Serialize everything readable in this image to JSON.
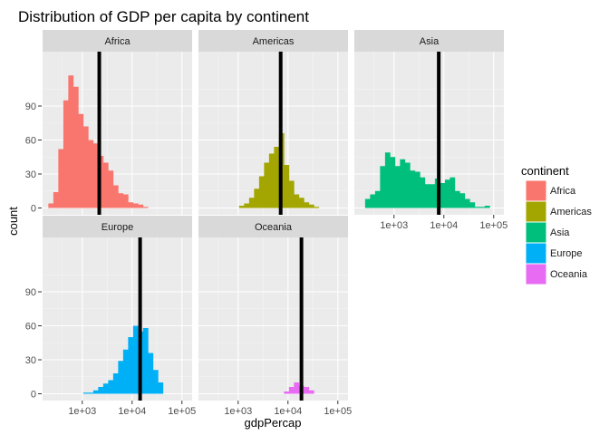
{
  "chart_data": {
    "type": "bar",
    "subtype": "faceted-histogram",
    "title": "Distribution of GDP per capita by continent",
    "xlabel": "gdpPercap",
    "ylabel": "count",
    "x_scale": "log10",
    "x_range": [
      160,
      160000
    ],
    "y_range": [
      -6,
      138
    ],
    "x_ticks": [
      {
        "value": 1000,
        "label": "1e+03"
      },
      {
        "value": 10000,
        "label": "1e+04"
      },
      {
        "value": 100000,
        "label": "1e+05"
      }
    ],
    "y_ticks": [
      {
        "value": 0,
        "label": "0"
      },
      {
        "value": 30,
        "label": "30"
      },
      {
        "value": 60,
        "label": "60"
      },
      {
        "value": 90,
        "label": "90"
      }
    ],
    "grid": true,
    "legend": {
      "title": "continent",
      "position": "right",
      "entries": [
        {
          "name": "Africa",
          "color": "#F8766D"
        },
        {
          "name": "Americas",
          "color": "#A3A500"
        },
        {
          "name": "Asia",
          "color": "#00BF7D"
        },
        {
          "name": "Europe",
          "color": "#00B0F6"
        },
        {
          "name": "Oceania",
          "color": "#E76BF3"
        }
      ]
    },
    "facets": [
      {
        "name": "Africa",
        "color": "#F8766D",
        "mean": 2194,
        "bins": [
          {
            "x0": 209,
            "x1": 263,
            "count": 4
          },
          {
            "x0": 263,
            "x1": 331,
            "count": 14
          },
          {
            "x0": 331,
            "x1": 417,
            "count": 52
          },
          {
            "x0": 417,
            "x1": 525,
            "count": 95
          },
          {
            "x0": 525,
            "x1": 661,
            "count": 117
          },
          {
            "x0": 661,
            "x1": 832,
            "count": 107
          },
          {
            "x0": 832,
            "x1": 1047,
            "count": 83
          },
          {
            "x0": 1047,
            "x1": 1318,
            "count": 72
          },
          {
            "x0": 1318,
            "x1": 1660,
            "count": 60
          },
          {
            "x0": 1660,
            "x1": 2089,
            "count": 57
          },
          {
            "x0": 2089,
            "x1": 2630,
            "count": 46
          },
          {
            "x0": 2630,
            "x1": 3311,
            "count": 40
          },
          {
            "x0": 3311,
            "x1": 4169,
            "count": 33
          },
          {
            "x0": 4169,
            "x1": 5248,
            "count": 20
          },
          {
            "x0": 5248,
            "x1": 6607,
            "count": 13
          },
          {
            "x0": 6607,
            "x1": 8318,
            "count": 12
          },
          {
            "x0": 8318,
            "x1": 10471,
            "count": 5
          },
          {
            "x0": 10471,
            "x1": 13183,
            "count": 4
          },
          {
            "x0": 13183,
            "x1": 16596,
            "count": 3
          },
          {
            "x0": 16596,
            "x1": 20893,
            "count": 1
          }
        ]
      },
      {
        "name": "Americas",
        "color": "#A3A500",
        "mean": 7136,
        "bins": [
          {
            "x0": 1047,
            "x1": 1318,
            "count": 2
          },
          {
            "x0": 1318,
            "x1": 1660,
            "count": 4
          },
          {
            "x0": 1660,
            "x1": 2089,
            "count": 9
          },
          {
            "x0": 2089,
            "x1": 2630,
            "count": 17
          },
          {
            "x0": 2630,
            "x1": 3311,
            "count": 28
          },
          {
            "x0": 3311,
            "x1": 4169,
            "count": 40
          },
          {
            "x0": 4169,
            "x1": 5248,
            "count": 48
          },
          {
            "x0": 5248,
            "x1": 6607,
            "count": 54
          },
          {
            "x0": 6607,
            "x1": 8318,
            "count": 66
          },
          {
            "x0": 8318,
            "x1": 10471,
            "count": 38
          },
          {
            "x0": 10471,
            "x1": 13183,
            "count": 24
          },
          {
            "x0": 13183,
            "x1": 16596,
            "count": 12
          },
          {
            "x0": 16596,
            "x1": 20893,
            "count": 9
          },
          {
            "x0": 20893,
            "x1": 26303,
            "count": 5
          },
          {
            "x0": 26303,
            "x1": 33113,
            "count": 3
          },
          {
            "x0": 33113,
            "x1": 41687,
            "count": 1
          }
        ]
      },
      {
        "name": "Asia",
        "color": "#00BF7D",
        "mean": 7902,
        "bins": [
          {
            "x0": 263,
            "x1": 331,
            "count": 8
          },
          {
            "x0": 331,
            "x1": 417,
            "count": 12
          },
          {
            "x0": 417,
            "x1": 525,
            "count": 15
          },
          {
            "x0": 525,
            "x1": 661,
            "count": 37
          },
          {
            "x0": 661,
            "x1": 832,
            "count": 49
          },
          {
            "x0": 832,
            "x1": 1047,
            "count": 45
          },
          {
            "x0": 1047,
            "x1": 1318,
            "count": 37
          },
          {
            "x0": 1318,
            "x1": 1660,
            "count": 43
          },
          {
            "x0": 1660,
            "x1": 2089,
            "count": 40
          },
          {
            "x0": 2089,
            "x1": 2630,
            "count": 33
          },
          {
            "x0": 2630,
            "x1": 3311,
            "count": 32
          },
          {
            "x0": 3311,
            "x1": 4169,
            "count": 27
          },
          {
            "x0": 4169,
            "x1": 5248,
            "count": 21
          },
          {
            "x0": 5248,
            "x1": 6607,
            "count": 21
          },
          {
            "x0": 6607,
            "x1": 8318,
            "count": 26
          },
          {
            "x0": 8318,
            "x1": 10471,
            "count": 22
          },
          {
            "x0": 10471,
            "x1": 13183,
            "count": 25
          },
          {
            "x0": 13183,
            "x1": 16596,
            "count": 27
          },
          {
            "x0": 16596,
            "x1": 20893,
            "count": 15
          },
          {
            "x0": 20893,
            "x1": 26303,
            "count": 13
          },
          {
            "x0": 26303,
            "x1": 33113,
            "count": 8
          },
          {
            "x0": 33113,
            "x1": 41687,
            "count": 5
          },
          {
            "x0": 41687,
            "x1": 52481,
            "count": 1
          },
          {
            "x0": 52481,
            "x1": 66069,
            "count": 1
          },
          {
            "x0": 66069,
            "x1": 83176,
            "count": 2
          }
        ]
      },
      {
        "name": "Europe",
        "color": "#00B0F6",
        "mean": 14469,
        "bins": [
          {
            "x0": 1047,
            "x1": 1318,
            "count": 1
          },
          {
            "x0": 1318,
            "x1": 1660,
            "count": 1
          },
          {
            "x0": 1660,
            "x1": 2089,
            "count": 3
          },
          {
            "x0": 2089,
            "x1": 2630,
            "count": 6
          },
          {
            "x0": 2630,
            "x1": 3311,
            "count": 9
          },
          {
            "x0": 3311,
            "x1": 4169,
            "count": 12
          },
          {
            "x0": 4169,
            "x1": 5248,
            "count": 18
          },
          {
            "x0": 5248,
            "x1": 6607,
            "count": 29
          },
          {
            "x0": 6607,
            "x1": 8318,
            "count": 39
          },
          {
            "x0": 8318,
            "x1": 10471,
            "count": 50
          },
          {
            "x0": 10471,
            "x1": 13183,
            "count": 60
          },
          {
            "x0": 13183,
            "x1": 16596,
            "count": 55
          },
          {
            "x0": 16596,
            "x1": 20893,
            "count": 58
          },
          {
            "x0": 20893,
            "x1": 26303,
            "count": 36
          },
          {
            "x0": 26303,
            "x1": 33113,
            "count": 21
          },
          {
            "x0": 33113,
            "x1": 41687,
            "count": 10
          }
        ]
      },
      {
        "name": "Oceania",
        "color": "#E76BF3",
        "mean": 18622,
        "bins": [
          {
            "x0": 8318,
            "x1": 10471,
            "count": 2
          },
          {
            "x0": 10471,
            "x1": 13183,
            "count": 6
          },
          {
            "x0": 13183,
            "x1": 16596,
            "count": 10
          },
          {
            "x0": 16596,
            "x1": 20893,
            "count": 7
          },
          {
            "x0": 20893,
            "x1": 26303,
            "count": 6
          },
          {
            "x0": 26303,
            "x1": 33113,
            "count": 3
          }
        ]
      }
    ]
  }
}
